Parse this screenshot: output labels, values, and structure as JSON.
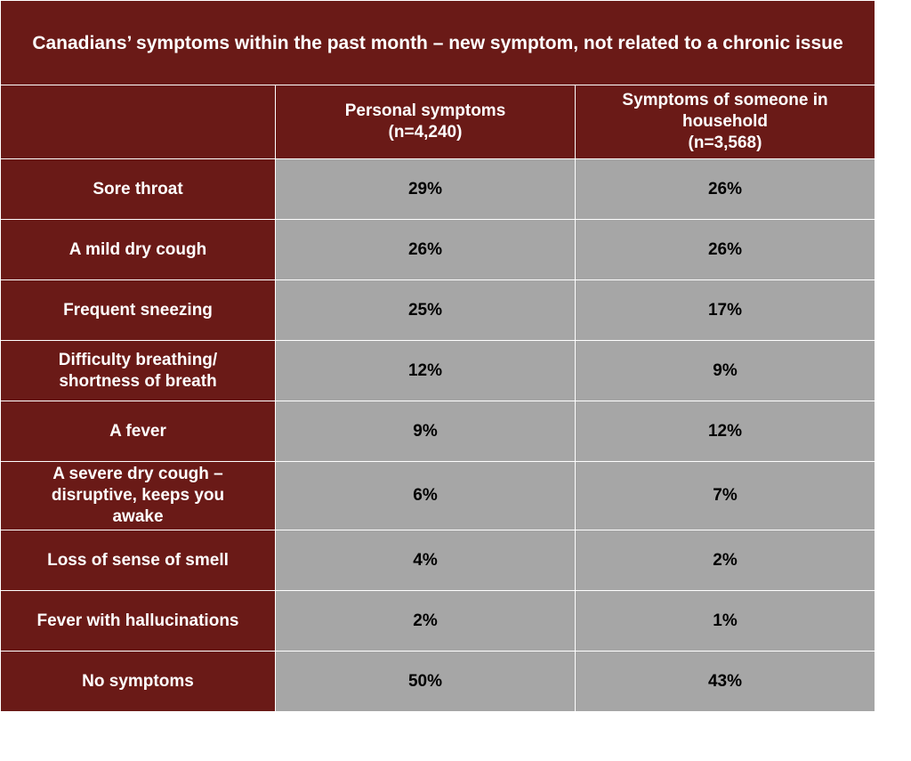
{
  "chart_data": {
    "type": "table",
    "title": "Canadians’ symptoms within the past month – new symptom, not related to a chronic issue",
    "columns": [
      "",
      "Personal symptoms\n(n=4,240)",
      "Symptoms of someone in household\n(n=3,568)"
    ],
    "rows": [
      {
        "label": "Sore throat",
        "values": [
          "29%",
          "26%"
        ]
      },
      {
        "label": "A mild dry cough",
        "values": [
          "26%",
          "26%"
        ]
      },
      {
        "label": "Frequent sneezing",
        "values": [
          "25%",
          "17%"
        ]
      },
      {
        "label": "Difficulty breathing/\nshortness of breath",
        "values": [
          "12%",
          "9%"
        ]
      },
      {
        "label": "A fever",
        "values": [
          "9%",
          "12%"
        ]
      },
      {
        "label": "A severe dry cough –\ndisruptive, keeps you\nawake",
        "values": [
          "6%",
          "7%"
        ]
      },
      {
        "label": "Loss of sense of smell",
        "values": [
          "4%",
          "2%"
        ]
      },
      {
        "label": "Fever with hallucinations",
        "values": [
          "2%",
          "1%"
        ]
      },
      {
        "label": "No symptoms",
        "values": [
          "50%",
          "43%"
        ]
      }
    ]
  },
  "colors": {
    "header_bg": "#6a1a17",
    "value_bg": "#a6a6a6",
    "header_text": "#ffffff",
    "value_text": "#000000"
  }
}
